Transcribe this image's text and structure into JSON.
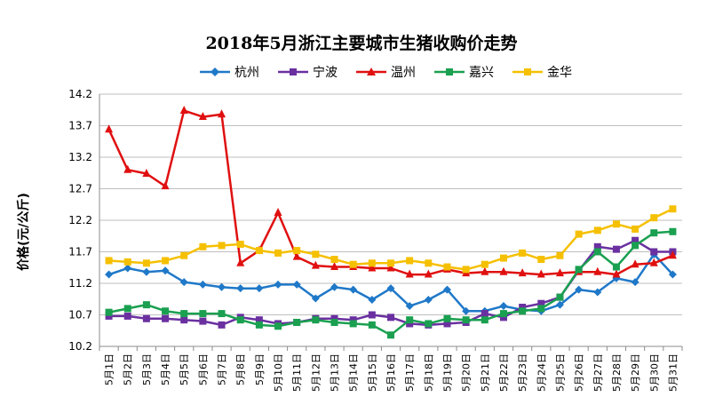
{
  "chart_data": {
    "type": "line",
    "title": "2018年5月浙江主要城市生猪收购价走势",
    "ylabel": "价格(元/公斤)",
    "xlabel": "",
    "ylim": [
      10.2,
      14.2
    ],
    "yticks": [
      10.2,
      10.7,
      11.2,
      11.7,
      12.2,
      12.7,
      13.2,
      13.7,
      14.2
    ],
    "grid": "horizontal",
    "legend_position": "top",
    "categories": [
      "5月1日",
      "5月2日",
      "5月3日",
      "5月4日",
      "5月5日",
      "5月6日",
      "5月7日",
      "5月8日",
      "5月9日",
      "5月10日",
      "5月11日",
      "5月12日",
      "5月13日",
      "5月14日",
      "5月15日",
      "5月16日",
      "5月17日",
      "5月18日",
      "5月19日",
      "5月20日",
      "5月21日",
      "5月22日",
      "5月23日",
      "5月24日",
      "5月25日",
      "5月26日",
      "5月27日",
      "5月28日",
      "5月29日",
      "5月30日",
      "5月31日"
    ],
    "series": [
      {
        "name": "杭州",
        "color": "#1f78c8",
        "marker": "diamond",
        "values": [
          11.34,
          11.44,
          11.38,
          11.4,
          11.22,
          11.18,
          11.14,
          11.12,
          11.12,
          11.18,
          11.18,
          10.96,
          11.14,
          11.1,
          10.94,
          11.12,
          10.84,
          10.94,
          11.1,
          10.76,
          10.76,
          10.84,
          10.78,
          10.76,
          10.86,
          11.1,
          11.06,
          11.28,
          11.22,
          11.66,
          11.34
        ]
      },
      {
        "name": "宁波",
        "color": "#6a30a0",
        "marker": "square",
        "values": [
          10.68,
          10.68,
          10.64,
          10.64,
          10.62,
          10.6,
          10.54,
          10.66,
          10.62,
          10.56,
          10.58,
          10.64,
          10.64,
          10.62,
          10.7,
          10.66,
          10.56,
          10.54,
          10.56,
          10.58,
          10.72,
          10.66,
          10.82,
          10.88,
          10.98,
          11.4,
          11.78,
          11.74,
          11.88,
          11.7,
          11.7
        ]
      },
      {
        "name": "温州",
        "color": "#e01010",
        "marker": "triangle",
        "values": [
          13.64,
          13.0,
          12.94,
          12.74,
          13.94,
          13.84,
          13.88,
          11.52,
          11.72,
          12.32,
          11.62,
          11.48,
          11.46,
          11.46,
          11.44,
          11.44,
          11.34,
          11.34,
          11.42,
          11.36,
          11.38,
          11.38,
          11.36,
          11.34,
          11.36,
          11.38,
          11.38,
          11.34,
          11.5,
          11.52,
          11.64
        ]
      },
      {
        "name": "嘉兴",
        "color": "#1aa050",
        "marker": "square",
        "values": [
          10.74,
          10.8,
          10.86,
          10.76,
          10.72,
          10.72,
          10.72,
          10.62,
          10.54,
          10.52,
          10.58,
          10.62,
          10.58,
          10.56,
          10.54,
          10.38,
          10.62,
          10.56,
          10.64,
          10.62,
          10.62,
          10.72,
          10.76,
          10.8,
          10.98,
          11.42,
          11.7,
          11.46,
          11.8,
          12.0,
          12.02
        ]
      },
      {
        "name": "金华",
        "color": "#f5c000",
        "marker": "square",
        "values": [
          11.56,
          11.54,
          11.52,
          11.56,
          11.64,
          11.78,
          11.8,
          11.82,
          11.72,
          11.68,
          11.72,
          11.66,
          11.58,
          11.5,
          11.52,
          11.52,
          11.56,
          11.52,
          11.46,
          11.42,
          11.5,
          11.6,
          11.68,
          11.58,
          11.64,
          11.98,
          12.04,
          12.14,
          12.06,
          12.24,
          12.38
        ]
      }
    ]
  }
}
